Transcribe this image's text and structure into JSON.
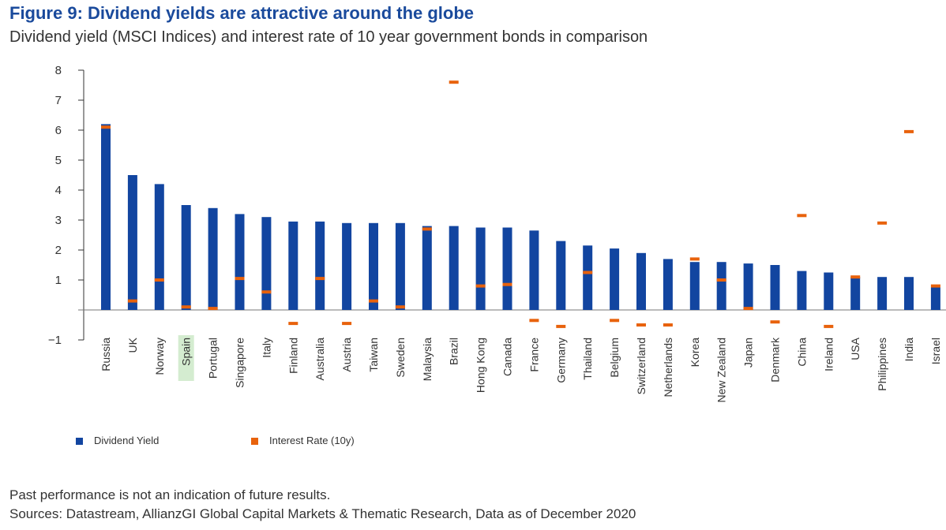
{
  "header": {
    "title": "Figure 9: Dividend yields are attractive around the globe",
    "subtitle": "Dividend yield (MSCI Indices) and interest rate of 10 year government bonds in comparison"
  },
  "colors": {
    "dividend": "#1245a0",
    "interest": "#e8620c",
    "highlight": "#d4ecd0",
    "axis": "#333333"
  },
  "chart_data": {
    "type": "bar",
    "categories": [
      "Russia",
      "UK",
      "Norway",
      "Spain",
      "Portugal",
      "Singapore",
      "Italy",
      "Finland",
      "Australia",
      "Austria",
      "Taiwan",
      "Sweden",
      "Malaysia",
      "Brazil",
      "Hong Kong",
      "Canada",
      "France",
      "Germany",
      "Thailand",
      "Belgium",
      "Switzerland",
      "Netherlands",
      "Korea",
      "New Zealand",
      "Japan",
      "Denmark",
      "China",
      "Ireland",
      "USA",
      "Philippines",
      "India",
      "Israel"
    ],
    "highlighted_category": "Spain",
    "series": [
      {
        "name": "Dividend Yield",
        "kind": "bar",
        "values": [
          6.2,
          4.5,
          4.2,
          3.5,
          3.4,
          3.2,
          3.1,
          2.95,
          2.95,
          2.9,
          2.9,
          2.9,
          2.8,
          2.8,
          2.75,
          2.75,
          2.65,
          2.3,
          2.15,
          2.05,
          1.9,
          1.7,
          1.6,
          1.6,
          1.55,
          1.5,
          1.3,
          1.25,
          1.1,
          1.1,
          1.1,
          0.75
        ]
      },
      {
        "name": "Interest Rate (10y)",
        "kind": "marker",
        "values": [
          6.1,
          0.3,
          1.0,
          0.1,
          0.05,
          1.05,
          0.6,
          -0.45,
          1.05,
          -0.45,
          0.3,
          0.1,
          2.7,
          7.6,
          0.8,
          0.85,
          -0.35,
          -0.55,
          1.25,
          -0.35,
          -0.5,
          -0.5,
          1.7,
          1.0,
          0.05,
          -0.4,
          3.15,
          -0.55,
          1.1,
          2.9,
          5.95,
          0.8
        ]
      }
    ],
    "ylim": [
      -1,
      8
    ],
    "yticks": [
      -1,
      1,
      2,
      3,
      4,
      5,
      6,
      7,
      8
    ],
    "legend": "bottom-left"
  },
  "legend": {
    "items": [
      {
        "label": "Dividend Yield"
      },
      {
        "label": "Interest Rate (10y)"
      }
    ]
  },
  "footnotes": {
    "disclaimer": "Past performance is not an indication of future results.",
    "sources": "Sources: Datastream, AllianzGI Global Capital Markets & Thematic Research, Data as of December 2020"
  }
}
